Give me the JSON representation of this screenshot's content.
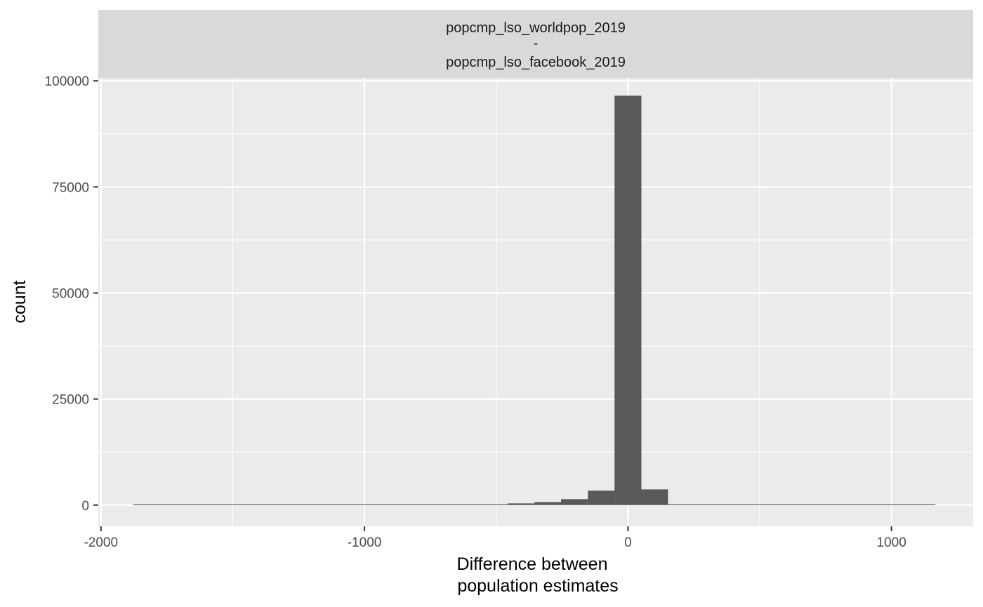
{
  "chart_data": {
    "type": "bar",
    "chart_kind": "histogram",
    "strip_title": [
      "popcmp_lso_worldpop_2019",
      "-",
      "popcmp_lso_facebook_2019"
    ],
    "xlabel": [
      "Difference between",
      "population estimates"
    ],
    "ylabel": "count",
    "xlim": [
      -2010,
      1310
    ],
    "ylim": [
      -5000,
      100700
    ],
    "x_ticks": [
      -2000,
      -1000,
      0,
      1000
    ],
    "x_tick_labels": [
      "-2000",
      "-1000",
      "0",
      "1000"
    ],
    "y_ticks": [
      0,
      25000,
      50000,
      75000,
      100000
    ],
    "y_tick_labels": [
      "0",
      "25000",
      "50000",
      "75000",
      "100000"
    ],
    "x_minor_ticks": [
      -1500,
      -500,
      500
    ],
    "y_minor_ticks": [
      12500,
      37500,
      62500,
      87500
    ],
    "bin_width": 101.5,
    "bins": [
      {
        "left": -1878,
        "right": -1776,
        "count": 20
      },
      {
        "left": -1776,
        "right": -1675,
        "count": 0
      },
      {
        "left": -1675,
        "right": -1573,
        "count": 20
      },
      {
        "left": -1573,
        "right": -1472,
        "count": 0
      },
      {
        "left": -1472,
        "right": -1370,
        "count": 20
      },
      {
        "left": -1370,
        "right": -1269,
        "count": 0
      },
      {
        "left": -1269,
        "right": -1167,
        "count": 20
      },
      {
        "left": -1167,
        "right": -1066,
        "count": 20
      },
      {
        "left": -1066,
        "right": -964,
        "count": 20
      },
      {
        "left": -964,
        "right": -863,
        "count": 30
      },
      {
        "left": -863,
        "right": -761,
        "count": 40
      },
      {
        "left": -761,
        "right": -660,
        "count": 100
      },
      {
        "left": -660,
        "right": -558,
        "count": 130
      },
      {
        "left": -558,
        "right": -457,
        "count": 200
      },
      {
        "left": -457,
        "right": -355,
        "count": 400
      },
      {
        "left": -355,
        "right": -254,
        "count": 700
      },
      {
        "left": -254,
        "right": -152,
        "count": 1400
      },
      {
        "left": -152,
        "right": -51,
        "count": 3400
      },
      {
        "left": -51,
        "right": 51,
        "count": 96500
      },
      {
        "left": 51,
        "right": 152,
        "count": 3700
      },
      {
        "left": 152,
        "right": 254,
        "count": 200
      },
      {
        "left": 254,
        "right": 355,
        "count": 40
      },
      {
        "left": 355,
        "right": 457,
        "count": 20
      },
      {
        "left": 457,
        "right": 558,
        "count": 20
      },
      {
        "left": 558,
        "right": 660,
        "count": 20
      },
      {
        "left": 660,
        "right": 761,
        "count": 20
      },
      {
        "left": 761,
        "right": 863,
        "count": 20
      },
      {
        "left": 863,
        "right": 964,
        "count": 20
      },
      {
        "left": 964,
        "right": 1066,
        "count": 20
      },
      {
        "left": 1066,
        "right": 1167,
        "count": 20
      }
    ],
    "colors": {
      "panel_background": "#ebebeb",
      "strip_background": "#d9d9d9",
      "grid": "#ffffff",
      "bar_fill": "#595959",
      "tick": "#333333"
    }
  }
}
